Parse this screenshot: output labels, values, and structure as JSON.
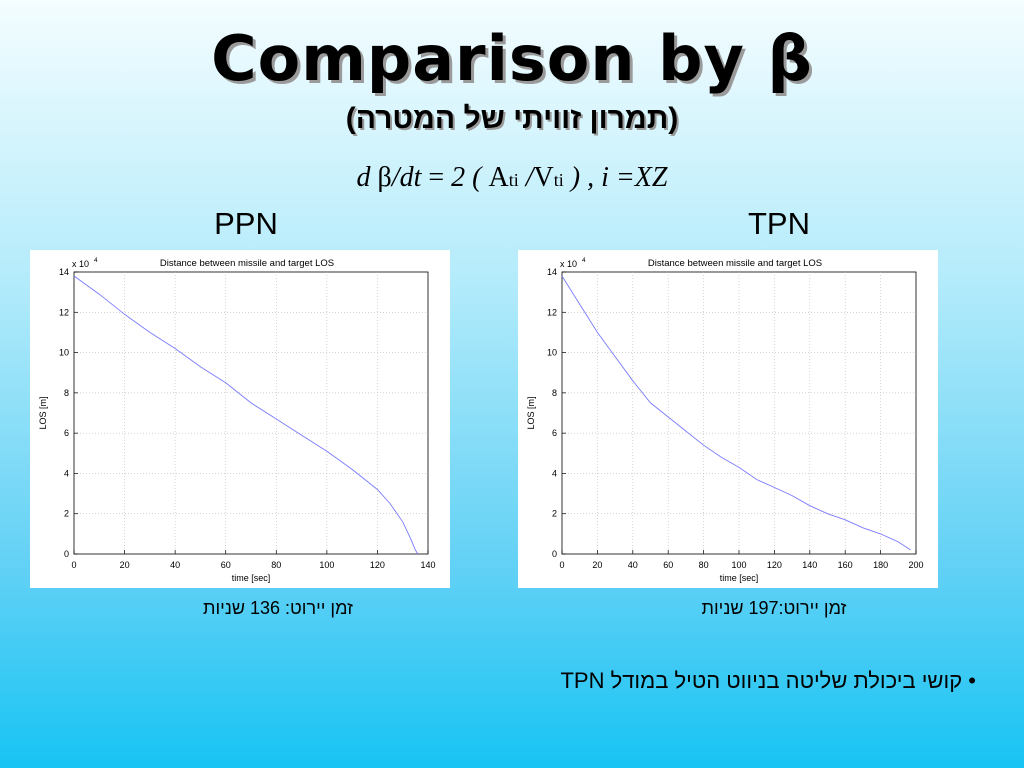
{
  "slide": {
    "title": "Comparison by β",
    "subtitle": "(תמרון זוויתי של המטרה)",
    "formula": {
      "d": "d ",
      "beta": "β",
      "dt": "/dt",
      "eq": " = ",
      "two": "2 ( ",
      "A": "A",
      "A_sub": "ti",
      "slash": " /",
      "V": "V",
      "V_sub": "ti",
      "tail": " ) ",
      "comma": ", ",
      "i": "i =XZ"
    },
    "left_label": "PPN",
    "right_label": "TPN",
    "left_caption": "זמן יירוט: 136 שניות",
    "right_caption": "זמן יירוט:197  שניות",
    "bullet": "• קושי ביכולת שליטה בניווט הטיל במודל TPN"
  },
  "chart_data": [
    {
      "type": "line",
      "title": "Distance between missile and target LOS",
      "xlabel": "time [sec]",
      "ylabel": "LOS [m]",
      "exponent_label": "x 10",
      "exponent_power": "4",
      "xlim": [
        0,
        140
      ],
      "ylim": [
        0,
        14
      ],
      "xticks": [
        "0",
        "20",
        "40",
        "60",
        "80",
        "100",
        "120",
        "140"
      ],
      "yticks": [
        "0",
        "2",
        "4",
        "6",
        "8",
        "10",
        "12",
        "14"
      ],
      "grid": true,
      "line_color": "#7a7aff",
      "series": [
        {
          "x": [
            0,
            10,
            20,
            30,
            40,
            50,
            60,
            70,
            80,
            90,
            100,
            110,
            120,
            125,
            130,
            133,
            135,
            136
          ],
          "y": [
            13.8,
            12.9,
            11.9,
            11.0,
            10.2,
            9.3,
            8.5,
            7.5,
            6.7,
            5.9,
            5.1,
            4.2,
            3.2,
            2.5,
            1.6,
            0.8,
            0.2,
            0.0
          ]
        }
      ]
    },
    {
      "type": "line",
      "title": "Distance between missile and target LOS",
      "xlabel": "time [sec]",
      "ylabel": "LOS [m]",
      "exponent_label": "x 10",
      "exponent_power": "4",
      "xlim": [
        0,
        200
      ],
      "ylim": [
        0,
        14
      ],
      "xticks": [
        "0",
        "20",
        "40",
        "60",
        "80",
        "100",
        "120",
        "140",
        "160",
        "180",
        "200"
      ],
      "yticks": [
        "0",
        "2",
        "4",
        "6",
        "8",
        "10",
        "12",
        "14"
      ],
      "grid": true,
      "line_color": "#7a7aff",
      "series": [
        {
          "x": [
            0,
            10,
            20,
            30,
            40,
            50,
            60,
            70,
            80,
            90,
            100,
            110,
            120,
            130,
            140,
            150,
            160,
            170,
            180,
            190,
            197
          ],
          "y": [
            13.8,
            12.4,
            11.0,
            9.8,
            8.6,
            7.5,
            6.8,
            6.1,
            5.4,
            4.8,
            4.3,
            3.7,
            3.3,
            2.9,
            2.4,
            2.0,
            1.7,
            1.3,
            1.0,
            0.6,
            0.2
          ]
        }
      ]
    }
  ]
}
